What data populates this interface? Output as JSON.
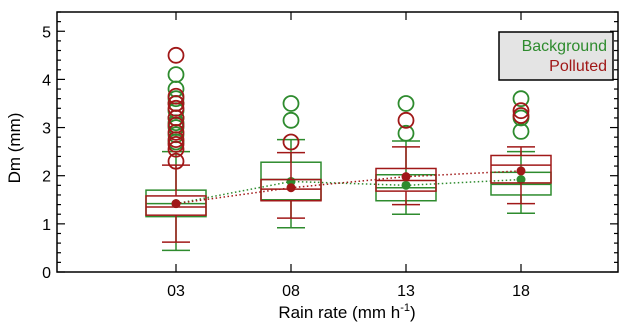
{
  "chart_data": {
    "type": "box",
    "xlabel_main": "Rain rate (mm h",
    "xlabel_sup": "-1",
    "xlabel_close": ")",
    "ylabel": "Dm (mm)",
    "ylim": [
      0,
      5.4
    ],
    "yticks": [
      0,
      1,
      2,
      3,
      4,
      5
    ],
    "categories": [
      "03",
      "08",
      "13",
      "18"
    ],
    "legend_position": "top-right",
    "mean_line_style": "dotted",
    "series": [
      {
        "name": "Background",
        "color": "#2e8b2e",
        "boxes": [
          {
            "category": "03",
            "whisker_low": 0.45,
            "q1": 1.15,
            "median": 1.42,
            "q3": 1.7,
            "whisker_high": 2.5,
            "mean": 1.42,
            "outliers": [
              2.7,
              2.85,
              3.0,
              3.1,
              3.2,
              3.35,
              3.5,
              3.6,
              3.8,
              4.1
            ]
          },
          {
            "category": "08",
            "whisker_low": 0.92,
            "q1": 1.5,
            "median": 1.92,
            "q3": 2.28,
            "whisker_high": 2.75,
            "mean": 1.88,
            "outliers": [
              3.15,
              3.5
            ]
          },
          {
            "category": "13",
            "whisker_low": 1.2,
            "q1": 1.48,
            "median": 1.75,
            "q3": 2.02,
            "whisker_high": 2.72,
            "mean": 1.8,
            "outliers": [
              2.88,
              3.5
            ]
          },
          {
            "category": "18",
            "whisker_low": 1.22,
            "q1": 1.6,
            "median": 1.82,
            "q3": 2.07,
            "whisker_high": 2.5,
            "mean": 1.92,
            "outliers": [
              2.92,
              3.2,
              3.6
            ]
          }
        ]
      },
      {
        "name": "Polluted",
        "color": "#a01818",
        "boxes": [
          {
            "category": "03",
            "whisker_low": 0.62,
            "q1": 1.18,
            "median": 1.35,
            "q3": 1.58,
            "whisker_high": 2.22,
            "mean": 1.42,
            "outliers": [
              2.3,
              2.55,
              2.65,
              2.75,
              2.9,
              3.05,
              3.2,
              3.4,
              3.5,
              3.65,
              4.5
            ]
          },
          {
            "category": "08",
            "whisker_low": 1.12,
            "q1": 1.48,
            "median": 1.72,
            "q3": 1.92,
            "whisker_high": 2.48,
            "mean": 1.75,
            "outliers": [
              2.7
            ]
          },
          {
            "category": "13",
            "whisker_low": 1.4,
            "q1": 1.68,
            "median": 1.9,
            "q3": 2.15,
            "whisker_high": 2.6,
            "mean": 1.98,
            "outliers": [
              3.15
            ]
          },
          {
            "category": "18",
            "whisker_low": 1.42,
            "q1": 1.85,
            "median": 2.22,
            "q3": 2.42,
            "whisker_high": 2.6,
            "mean": 2.1,
            "outliers": [
              3.25,
              3.35
            ]
          }
        ]
      }
    ]
  }
}
